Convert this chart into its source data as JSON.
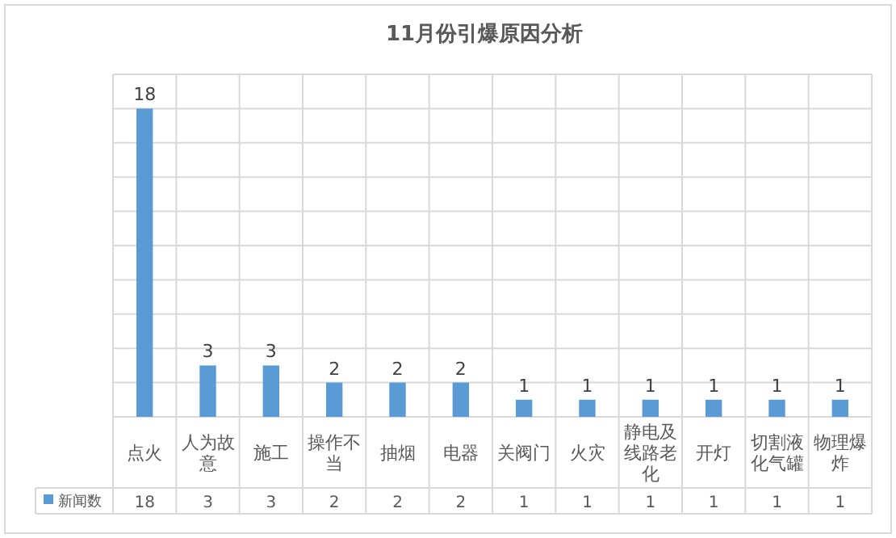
{
  "chart_data": {
    "type": "bar",
    "title": "11月份引爆原因分析",
    "categories": [
      "点火",
      "人为故意",
      "施工",
      "操作不当",
      "抽烟",
      "电器",
      "关阀门",
      "火灾",
      "静电及线路老化",
      "开灯",
      "切割液化气罐",
      "物理爆炸"
    ],
    "series": [
      {
        "name": "新闻数",
        "color": "#5b9bd5",
        "values": [
          18,
          3,
          3,
          2,
          2,
          2,
          1,
          1,
          1,
          1,
          1,
          1
        ],
        "value_labels": [
          "18",
          "3",
          "3",
          "2",
          "2",
          "2",
          "1",
          "1",
          "1",
          "1",
          "1",
          "1"
        ]
      }
    ],
    "ylim": [
      0,
      20
    ],
    "yticks": [
      {
        "value": 0,
        "label": null
      },
      {
        "value": 2,
        "label": null
      },
      {
        "value": 4,
        "label": null
      },
      {
        "value": 6,
        "label": null
      },
      {
        "value": 8,
        "label": null
      },
      {
        "value": 10,
        "label": null
      },
      {
        "value": 12,
        "label": null
      },
      {
        "value": 14,
        "label": null
      },
      {
        "value": 16,
        "label": null
      },
      {
        "value": 18,
        "label": null
      },
      {
        "value": 20,
        "label": null
      }
    ],
    "grid": true,
    "data_labels": true,
    "tick_labels": "x",
    "legend": "bottom left"
  }
}
